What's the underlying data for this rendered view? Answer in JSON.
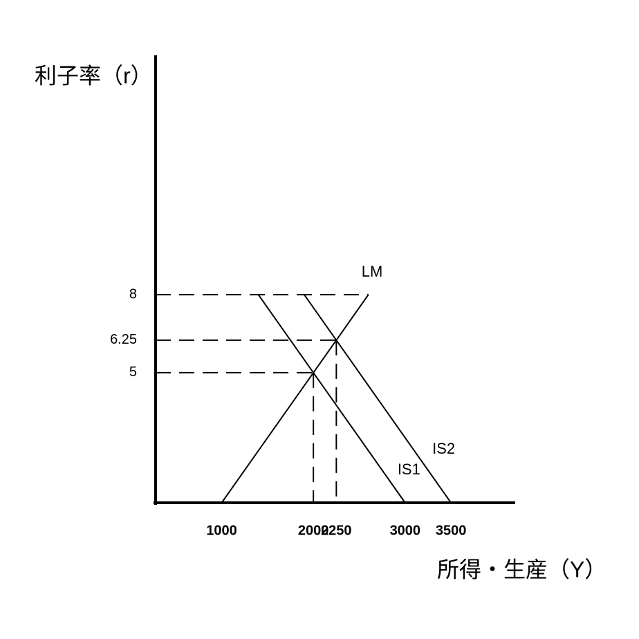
{
  "chart_data": {
    "type": "line",
    "y_label": "利子率（r）",
    "x_label": "所得・生産（Y）",
    "xlim": [
      280,
      4200
    ],
    "ylim": [
      0,
      17.2
    ],
    "xticks": [
      1000,
      2000,
      2250,
      3000,
      3500
    ],
    "yticks": [
      5,
      6.25,
      8
    ],
    "color": "#000000",
    "series": [
      {
        "name": "LM",
        "x": [
          1000,
          2000,
          2250,
          2600
        ],
        "values": [
          0,
          5,
          6.25,
          8
        ]
      },
      {
        "name": "IS1",
        "x": [
          1400,
          2000,
          3000
        ],
        "values": [
          8,
          5,
          0
        ]
      },
      {
        "name": "IS2",
        "x": [
          1900,
          2250,
          3500
        ],
        "values": [
          8,
          6.25,
          0
        ]
      }
    ]
  }
}
